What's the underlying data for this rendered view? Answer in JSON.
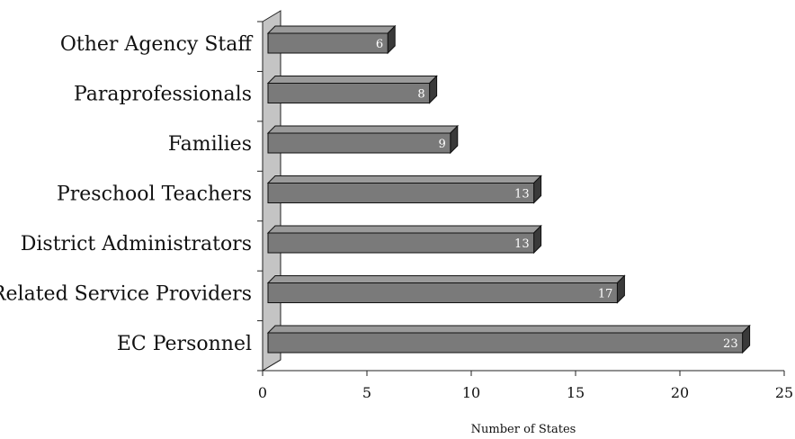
{
  "chart_data": {
    "type": "bar",
    "orientation": "horizontal",
    "title": "",
    "xlabel": "Number of States",
    "ylabel": "",
    "categories": [
      "Other Agency Staff",
      "Paraprofessionals",
      "Families",
      "Preschool Teachers",
      "District Administrators",
      "Related Service Providers",
      "EC Personnel"
    ],
    "values": [
      6,
      8,
      9,
      13,
      13,
      17,
      23
    ],
    "xlim": [
      0,
      25
    ],
    "xticks": [
      0,
      5,
      10,
      15,
      20,
      25
    ],
    "grid": false,
    "legend": "none",
    "data_labels": true,
    "style": "3d",
    "colors": {
      "bar_front": "#7a7a7a",
      "bar_top": "#9a9a9a",
      "bar_side": "#3a3a3a",
      "wall": "#c4c4c4",
      "axis": "#222222",
      "value_text": "#ffffff"
    }
  }
}
